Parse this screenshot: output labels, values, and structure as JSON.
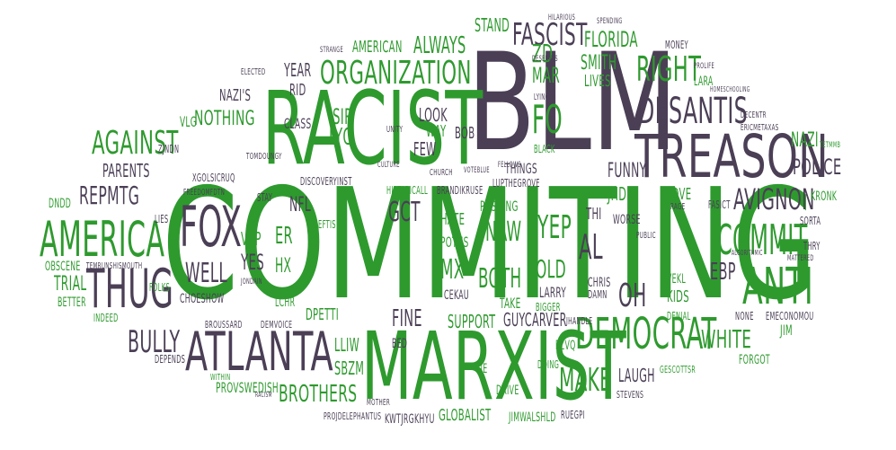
{
  "word_cloud": {
    "colors": {
      "green": "#2e9a2e",
      "purple": "#4b3f56",
      "background": "#ffffff"
    },
    "words": [
      "COMMITING",
      "BLM",
      "RACIST",
      "MARXIST",
      "TREASON",
      "ATLANTA",
      "AMERICA",
      "THUG",
      "FOX",
      "DEMOCRAT",
      "ANTI",
      "COMMIT",
      "DESANTIS",
      "ORGANIZATION",
      "FASCIST",
      "RIGHT",
      "AGAINST",
      "AVIGNON",
      "POLICE",
      "BULLY",
      "WHITE",
      "MAKE",
      "REPMTG",
      "NOTHING",
      "WELL",
      "FO",
      "LYG",
      "SIR",
      "ER",
      "HX",
      "YES",
      "VKP",
      "NFL",
      "GCT",
      "NAW",
      "YEP",
      "AL",
      "OLD",
      "BOTH",
      "MX",
      "FINE",
      "OH",
      "EBP",
      "SUPPORT",
      "GUYCARVER",
      "BROTHERS",
      "LLIW",
      "SBZM",
      "FUNNY",
      "NAZI",
      "SMITH",
      "MAR",
      "ZD",
      "LIVES",
      "FLORIDA",
      "ALWAYS",
      "AMERICAN",
      "STAND",
      "YEAR",
      "RID",
      "PARENTS",
      "CLASS",
      "LOOK",
      "WAY",
      "BOB",
      "FEW",
      "VLG",
      "NAZI'S",
      "ZJNDN",
      "XGOLSICRUQ",
      "DNDD",
      "LIES",
      "OBSCENE",
      "TRIAL",
      "BETTER",
      "FOLKS",
      "INDEED",
      "CHOESHOW",
      "LCHR",
      "DPETTI",
      "BROUSSARD",
      "DEMVOICE",
      "TEMRUNSHISMOUTH",
      "WITHIN",
      "PROVSWEDISH",
      "DEPENDS",
      "BED",
      "LIE",
      "DRIVE",
      "FZVQ",
      "DOING",
      "LAUGH",
      "FORGOT",
      "GESCOTTSR",
      "STEVENS",
      "JIM",
      "DENIAL",
      "KIDS",
      "VEKL",
      "LOVE",
      "JHDB",
      "WORSE",
      "THI",
      "CHRIS",
      "DAMN",
      "LARRY",
      "TAKE",
      "BIGGER",
      "JHANDLE",
      "CEKAU",
      "PUSHING",
      "POTUS",
      "HATE",
      "THINGS",
      "LUPTHEGROVE",
      "CHURCH",
      "HISTARICALL",
      "BRANDIKRUSE",
      "DISCOVERYINST",
      "FREEDOMFDTN",
      "STAY",
      "LEFTIS",
      "KRONK",
      "SORTA",
      "THRY",
      "FASICT",
      "RAGE",
      "PUBLIC",
      "NONE",
      "EMECONOMOU",
      "GLOBALIST",
      "JIMWALSHLD",
      "RUEGPI",
      "KWTJRGKHYU",
      "PROJDELEPHANTUS",
      "MOTHER",
      "ELECTED",
      "MONEY",
      "LARA",
      "PROLIFE",
      "DECENTR",
      "ERICMETAXAS",
      "HILARIOUS",
      "CULTURE",
      "UNITY",
      "TOMDOUNGY",
      "BLACK",
      "DESERVES",
      "LYING",
      "SPENDING",
      "STRANGE",
      "FELLOWS",
      "VOTEBLUE",
      "JONDAIN",
      "RACISM",
      "TETMMB",
      "HOMESCHOOLING",
      "ALGORITHMIC",
      "MATTERED"
    ]
  }
}
